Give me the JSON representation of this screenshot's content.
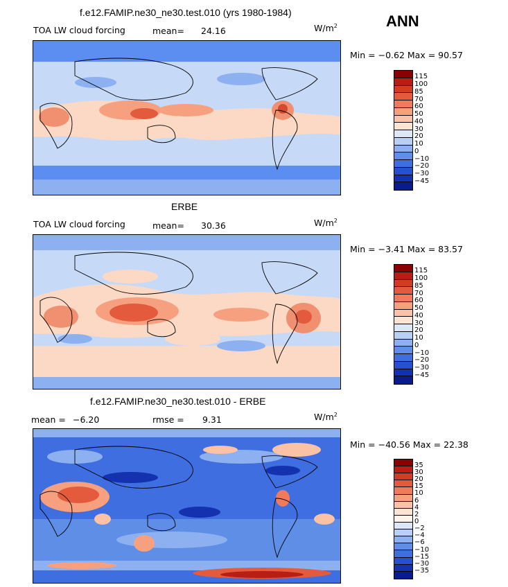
{
  "season": "ANN",
  "units": "W/m",
  "units_exp": "2",
  "colors": {
    "deep_blue": "#1a1aa0",
    "blue": "#2b5fe0",
    "mid_blue": "#5b8ef0",
    "light_blue": "#c6daf8",
    "pale_peach": "#fbd9c4",
    "orange": "#f09070",
    "red": "#d44a30"
  },
  "panels": [
    {
      "title": "f.e12.FAMIP.ne30_ne30.test.010 (yrs 1980-1984)",
      "field": "TOA LW cloud forcing",
      "mean_label": "mean=",
      "mean_value": "24.16",
      "minmax": "Min =  −0.62 Max =  90.57",
      "levels": [
        "115",
        "100",
        "85",
        "70",
        "60",
        "50",
        "40",
        "30",
        "20",
        "10",
        "0",
        "−10",
        "−20",
        "−30",
        "−45"
      ],
      "colors": [
        "#8b0000",
        "#b81e14",
        "#d23c22",
        "#e35b3c",
        "#f07a5c",
        "#f6a07f",
        "#fbc2a6",
        "#fde3d2",
        "#dce8f8",
        "#b8d0f5",
        "#8db1f0",
        "#5e8ee6",
        "#3e6ee0",
        "#2550d0",
        "#1432b0",
        "#0a1c8c"
      ]
    },
    {
      "title": "ERBE",
      "field": "TOA LW cloud forcing",
      "mean_label": "mean=",
      "mean_value": "30.36",
      "minmax": "Min =  −3.41 Max =  83.57",
      "levels": [
        "115",
        "100",
        "85",
        "70",
        "60",
        "50",
        "40",
        "30",
        "20",
        "10",
        "0",
        "−10",
        "−20",
        "−30",
        "−45"
      ],
      "colors": [
        "#8b0000",
        "#b81e14",
        "#d23c22",
        "#e35b3c",
        "#f07a5c",
        "#f6a07f",
        "#fbc2a6",
        "#fde3d2",
        "#dce8f8",
        "#b8d0f5",
        "#8db1f0",
        "#5e8ee6",
        "#3e6ee0",
        "#2550d0",
        "#1432b0",
        "#0a1c8c"
      ]
    },
    {
      "title": "f.e12.FAMIP.ne30_ne30.test.010 - ERBE",
      "field": "",
      "mean_label": "mean =",
      "mean_value": "−6.20",
      "rmse_label": "rmse =",
      "rmse_value": "9.31",
      "minmax": "Min = −40.56 Max =  22.38",
      "levels": [
        "35",
        "30",
        "20",
        "15",
        "10",
        "6",
        "4",
        "2",
        "0",
        "−2",
        "−4",
        "−6",
        "−10",
        "−15",
        "−30",
        "−35"
      ],
      "colors": [
        "#8b0000",
        "#b81e14",
        "#d23c22",
        "#e35b3c",
        "#f07a5c",
        "#f6a07f",
        "#fbc2a6",
        "#fde3d2",
        "#fff4ec",
        "#dce8f8",
        "#b8d0f5",
        "#8db1f0",
        "#5e8ee6",
        "#3e6ee0",
        "#2550d0",
        "#1432b0",
        "#0a1c8c"
      ]
    }
  ]
}
